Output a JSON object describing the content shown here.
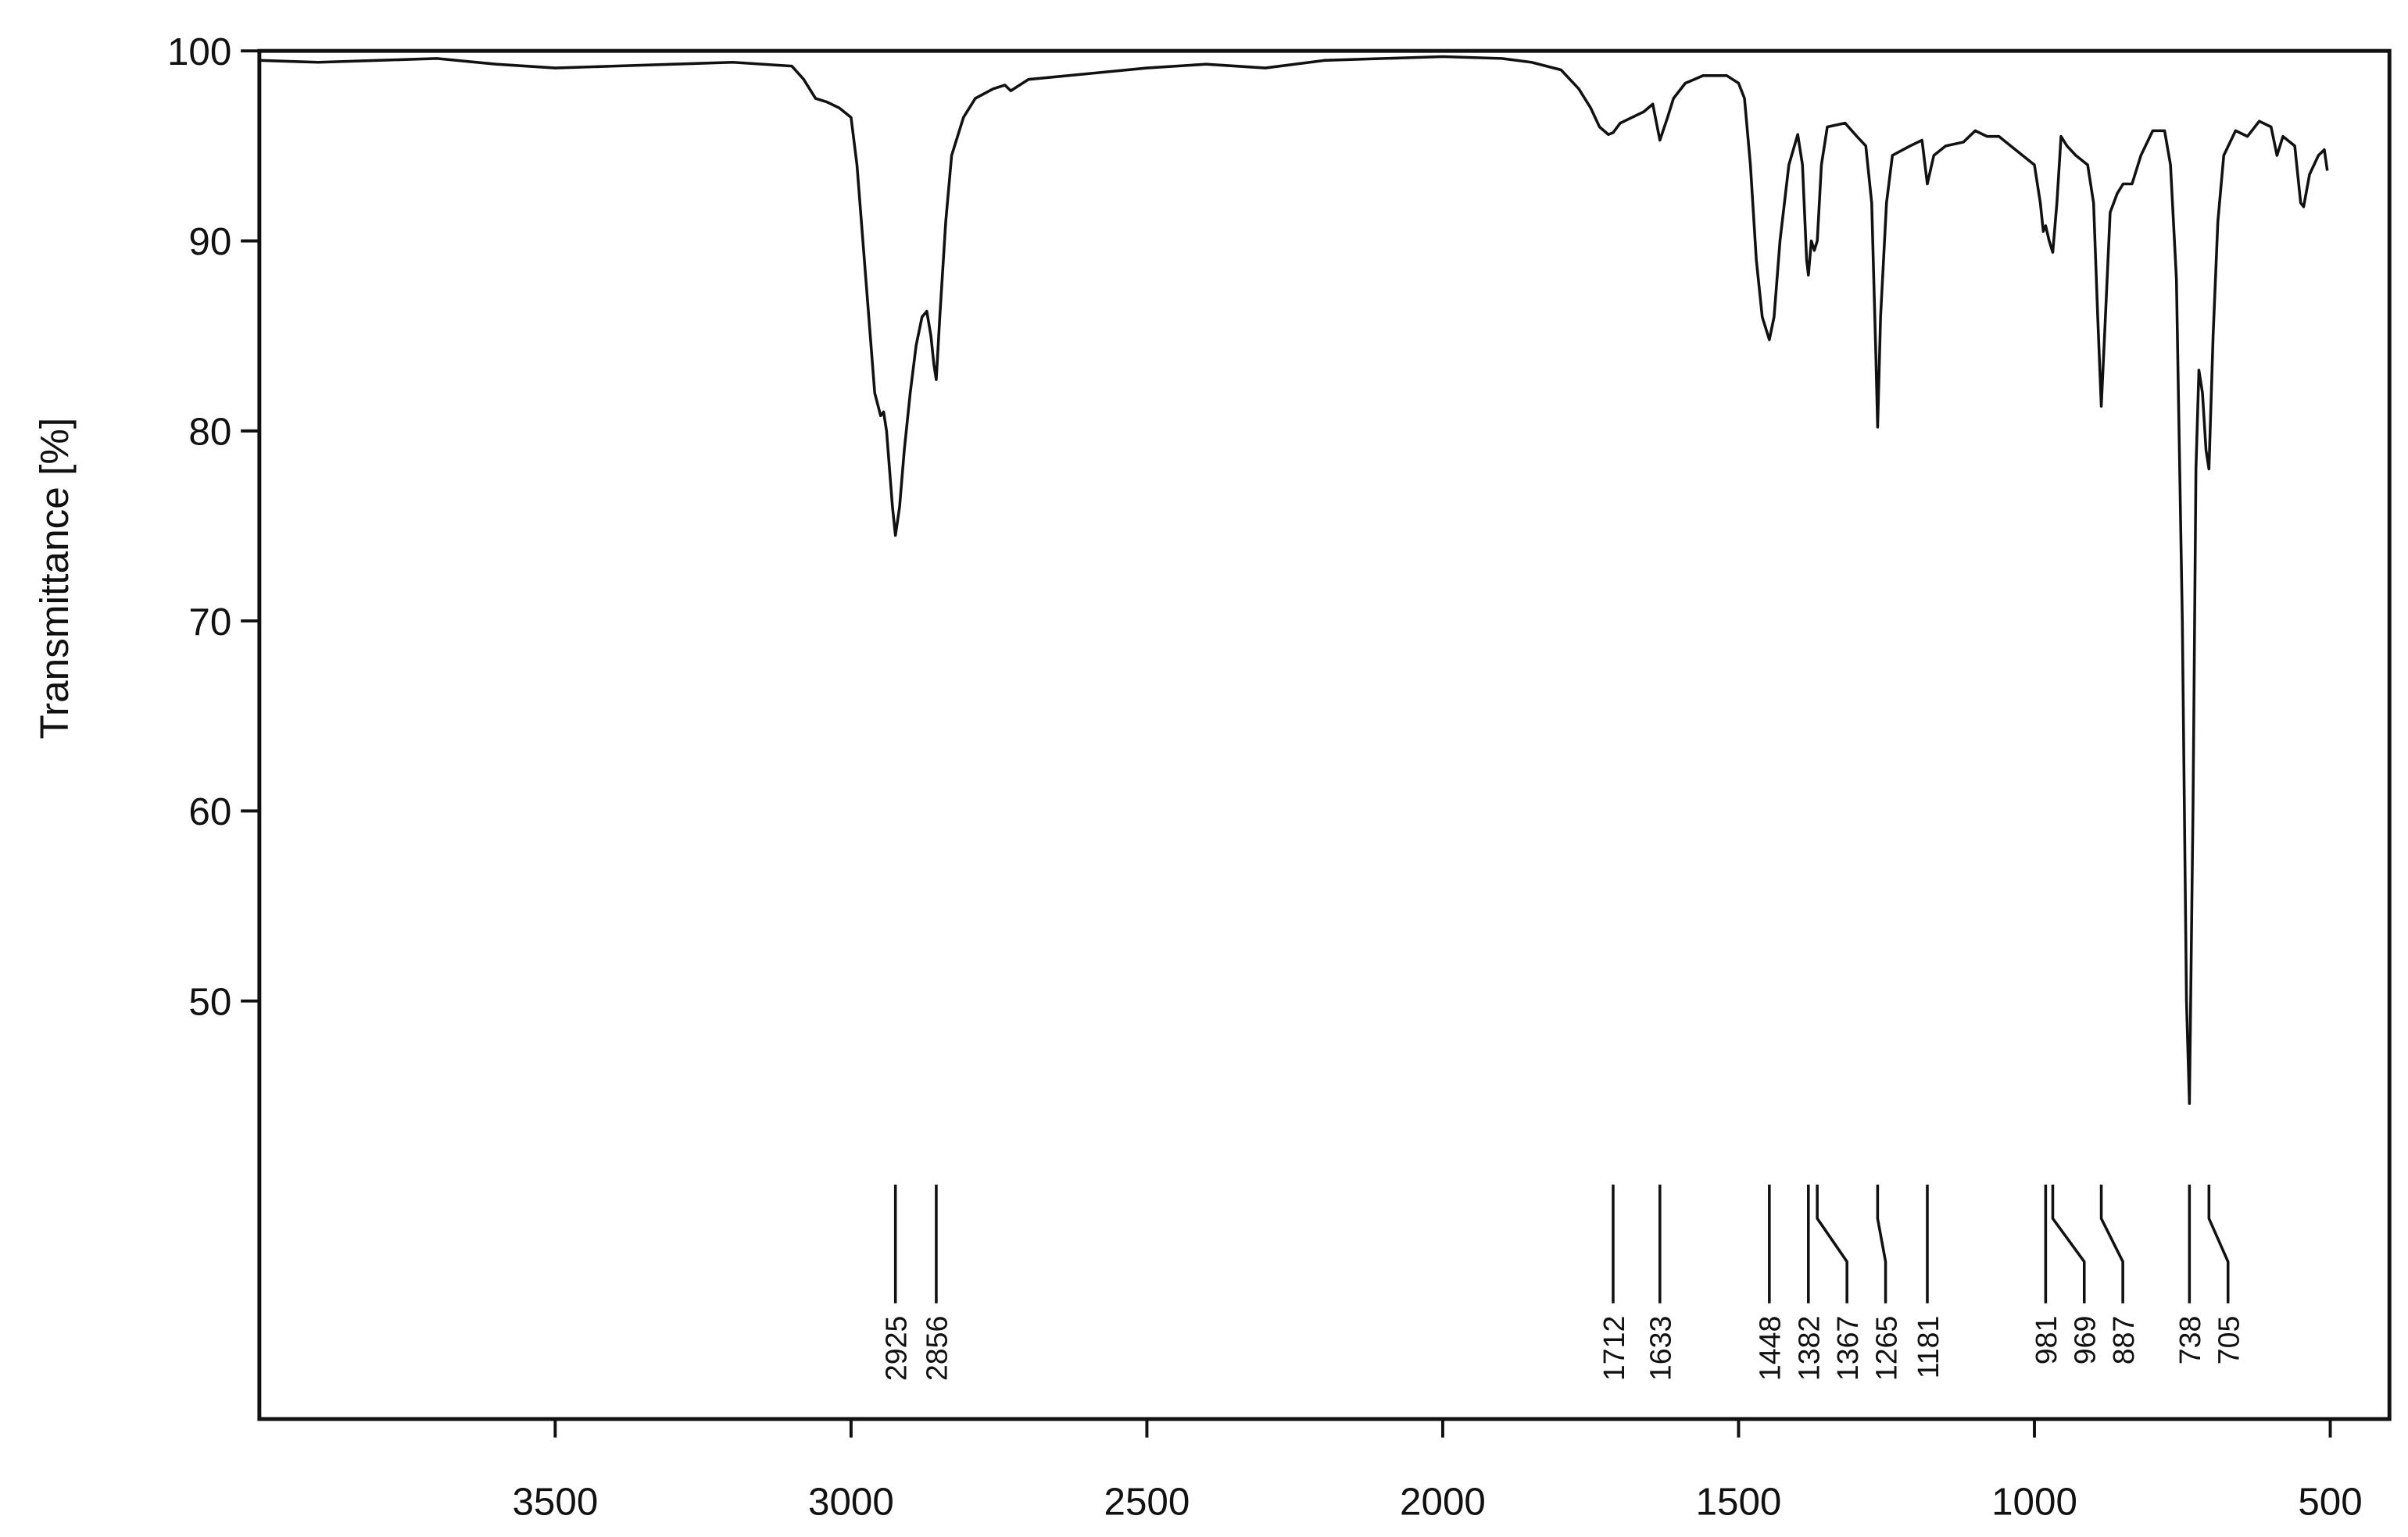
{
  "chart_data": {
    "type": "line",
    "ylabel": "Transmittance [%]",
    "x": [
      4000,
      3900,
      3800,
      3700,
      3600,
      3500,
      3400,
      3300,
      3200,
      3100,
      3080,
      3060,
      3040,
      3020,
      3000,
      2990,
      2980,
      2970,
      2960,
      2950,
      2945,
      2940,
      2935,
      2930,
      2925,
      2918,
      2910,
      2900,
      2890,
      2880,
      2872,
      2865,
      2860,
      2856,
      2850,
      2840,
      2830,
      2810,
      2790,
      2760,
      2740,
      2730,
      2700,
      2600,
      2500,
      2400,
      2300,
      2200,
      2100,
      2000,
      1900,
      1850,
      1800,
      1770,
      1750,
      1735,
      1720,
      1712,
      1700,
      1680,
      1660,
      1645,
      1633,
      1620,
      1610,
      1590,
      1560,
      1520,
      1500,
      1490,
      1480,
      1470,
      1460,
      1448,
      1440,
      1430,
      1415,
      1400,
      1392,
      1385,
      1382,
      1377,
      1372,
      1367,
      1360,
      1350,
      1320,
      1300,
      1285,
      1275,
      1268,
      1265,
      1260,
      1250,
      1240,
      1210,
      1190,
      1181,
      1170,
      1150,
      1120,
      1100,
      1080,
      1060,
      1040,
      1020,
      1000,
      990,
      985,
      981,
      975,
      969,
      962,
      955,
      945,
      930,
      910,
      900,
      893,
      887,
      880,
      872,
      860,
      850,
      835,
      820,
      800,
      780,
      770,
      760,
      750,
      743,
      738,
      732,
      727,
      722,
      716,
      710,
      705,
      698,
      690,
      680,
      660,
      640,
      620,
      600,
      590,
      580,
      560,
      550,
      545,
      535,
      520,
      510,
      505
    ],
    "series": [
      {
        "color": "#111111",
        "values": [
          99.5,
          99.4,
          99.5,
          99.6,
          99.3,
          99.1,
          99.2,
          99.3,
          99.4,
          99.2,
          98.5,
          97.5,
          97.3,
          97.0,
          96.5,
          94,
          90,
          86,
          82,
          80.8,
          81,
          80,
          78,
          76,
          74.5,
          76,
          79,
          82,
          84.5,
          86,
          86.3,
          85,
          83.5,
          82.7,
          86,
          91,
          94.5,
          96.5,
          97.5,
          98,
          98.2,
          97.9,
          98.5,
          98.8,
          99.1,
          99.3,
          99.1,
          99.5,
          99.6,
          99.7,
          99.6,
          99.4,
          99,
          98,
          97,
          96,
          95.6,
          95.7,
          96.2,
          96.5,
          96.8,
          97.2,
          95.3,
          96.5,
          97.5,
          98.3,
          98.7,
          98.7,
          98.3,
          97.5,
          94,
          89,
          86,
          84.8,
          86,
          90,
          94,
          95.6,
          94,
          89,
          88.2,
          90,
          89.5,
          90,
          94,
          96,
          96.2,
          95.5,
          95,
          92,
          84,
          80.2,
          86,
          92,
          94.5,
          95,
          95.3,
          93,
          94.5,
          95,
          95.2,
          95.8,
          95.5,
          95.5,
          95,
          94.5,
          94,
          92,
          90.5,
          90.8,
          90,
          89.4,
          92,
          95.5,
          95,
          94.5,
          94,
          92,
          86,
          81.3,
          86,
          91.5,
          92.5,
          93,
          93,
          94.5,
          95.8,
          95.8,
          94,
          88,
          70,
          50,
          44.6,
          60,
          78,
          83.2,
          82,
          79,
          78,
          85,
          91,
          94.5,
          95.8,
          95.5,
          96.3,
          96,
          94.5,
          95.5,
          95,
          92,
          91.8,
          93.5,
          94.5,
          94.8,
          93.7
        ]
      }
    ],
    "xlim": [
      4000,
      400
    ],
    "ylim": [
      28,
      100
    ],
    "xticks": [
      3500,
      3000,
      2500,
      2000,
      1500,
      1000,
      500
    ],
    "yticks": [
      50,
      60,
      70,
      80,
      90,
      100
    ],
    "annotations": [
      2925,
      2856,
      1712,
      1633,
      1448,
      1382,
      1367,
      1265,
      1181,
      981,
      969,
      887,
      738,
      705
    ]
  }
}
